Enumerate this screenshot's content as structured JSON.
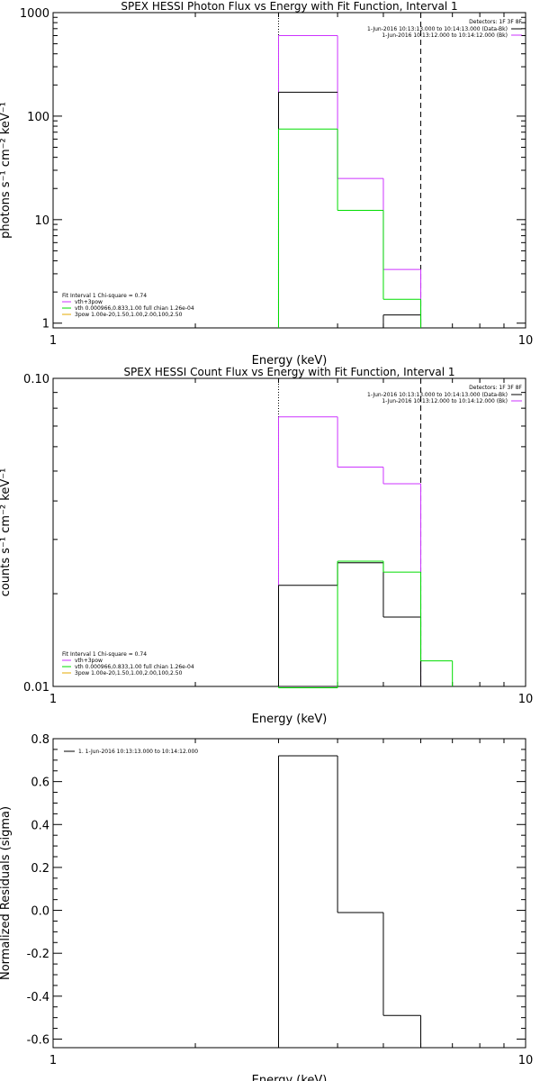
{
  "colors": {
    "background": "#ffffff",
    "axes": "#000000",
    "vth_plus_3pow": "#cc33ff",
    "vth": "#00dd00",
    "three_pow": "#e6a800",
    "data": "#000000",
    "fit": "#cc33ff"
  },
  "chart_data": [
    {
      "type": "line",
      "title": "SPEX HESSI Photon Flux vs Energy with Fit Function, Interval 1",
      "xlabel": "Energy (keV)",
      "ylabel": "photons s⁻¹ cm⁻² keV⁻¹",
      "x_scale": "log",
      "y_scale": "log",
      "xlim": [
        1,
        10
      ],
      "ylim": [
        0.9,
        1000
      ],
      "x_ticks": [
        1,
        10
      ],
      "x_tick_labels": [
        "1",
        "10"
      ],
      "y_ticks": [
        1,
        10,
        100,
        1000
      ],
      "y_tick_labels": [
        "1",
        "10",
        "100",
        "1000"
      ],
      "vlines": [
        {
          "x": 3.0,
          "style": "dotted"
        },
        {
          "x": 6.0,
          "style": "dashed"
        }
      ],
      "legend_top_right": {
        "header": "Detectors: 1F 3F 8F",
        "entries": [
          {
            "text": "1-Jun-2016 10:13:13.000 to 10:14:13.000 (Data-Bk)",
            "color": "#000000"
          },
          {
            "text": "1-Jun-2016 10:13:12.000 to 10:14:12.000 (Bk)",
            "color": "#cc33ff"
          }
        ]
      },
      "legend_bottom_left": {
        "header": "Fit Interval 1   Chi-square = 0.74",
        "entries": [
          {
            "text": "vth+3pow",
            "color": "#cc33ff"
          },
          {
            "text": "vth 0.000966,0.833,1.00  full chian 1.26e-04",
            "color": "#00dd00"
          },
          {
            "text": "3pow 1.00e-20,1.50,1.00,2.00,100,2.50",
            "color": "#e6a800"
          }
        ]
      },
      "series": [
        {
          "color": "#cc33ff",
          "edges": [
            3,
            4,
            5,
            6
          ],
          "values": [
            600,
            25,
            3.3
          ]
        },
        {
          "color": "#000000",
          "edges": [
            3,
            4,
            5,
            6
          ],
          "values": [
            170,
            0,
            1.2
          ]
        },
        {
          "color": "#00dd00",
          "edges": [
            3,
            4,
            5,
            6
          ],
          "values": [
            75,
            12.3,
            1.7
          ]
        }
      ]
    },
    {
      "type": "line",
      "title": "SPEX HESSI Count Flux vs Energy with Fit Function, Interval 1",
      "xlabel": "Energy (keV)",
      "ylabel": "counts s⁻¹ cm⁻² keV⁻¹",
      "x_scale": "log",
      "y_scale": "log",
      "xlim": [
        1,
        10
      ],
      "ylim": [
        0.01,
        0.1
      ],
      "x_ticks": [
        1,
        10
      ],
      "x_tick_labels": [
        "1",
        "10"
      ],
      "y_ticks": [
        0.01,
        0.1
      ],
      "y_tick_labels": [
        "0.01",
        "0.10"
      ],
      "vlines": [
        {
          "x": 3.0,
          "style": "dotted"
        },
        {
          "x": 6.0,
          "style": "dashed"
        }
      ],
      "legend_top_right": {
        "header": "Detectors: 1F 3F 8F",
        "entries": [
          {
            "text": "1-Jun-2016 10:13:13.000 to 10:14:13.000 (Data-Bk)",
            "color": "#000000"
          },
          {
            "text": "1-Jun-2016 10:13:12.000 to 10:14:12.000 (Bk)",
            "color": "#cc33ff"
          }
        ]
      },
      "legend_bottom_left": {
        "header": "Fit Interval 1   Chi-square = 0.74",
        "entries": [
          {
            "text": "vth+3pow",
            "color": "#cc33ff"
          },
          {
            "text": "vth 0.000966,0.833,1.00  full chian 1.26e-04",
            "color": "#00dd00"
          },
          {
            "text": "3pow 1.00e-20,1.50,1.00,2.00,100,2.50",
            "color": "#e6a800"
          }
        ]
      },
      "series": [
        {
          "color": "#cc33ff",
          "edges": [
            3,
            4,
            5,
            6
          ],
          "values": [
            0.075,
            0.0515,
            0.0455
          ]
        },
        {
          "color": "#000000",
          "edges": [
            3,
            4,
            5,
            6
          ],
          "values": [
            0.0213,
            0.0252,
            0.0168
          ]
        },
        {
          "color": "#00dd00",
          "edges": [
            3,
            4,
            5,
            6,
            7
          ],
          "values": [
            0.0099,
            0.0255,
            0.0235,
            0.0121
          ]
        }
      ]
    },
    {
      "type": "line",
      "title": "",
      "xlabel": "Energy (keV)",
      "ylabel": "Normalized Residuals (sigma)",
      "x_scale": "log",
      "y_scale": "linear",
      "xlim": [
        1,
        10
      ],
      "ylim": [
        -0.64,
        0.8
      ],
      "x_ticks": [
        1,
        10
      ],
      "x_tick_labels": [
        "1",
        "10"
      ],
      "y_ticks": [
        -0.6,
        -0.4,
        -0.2,
        0.0,
        0.2,
        0.4,
        0.6,
        0.8
      ],
      "y_tick_labels": [
        "-0.6",
        "-0.4",
        "-0.2",
        "0.0",
        "0.2",
        "0.4",
        "0.6",
        "0.8"
      ],
      "legend_top_left": {
        "entries": [
          {
            "text": "1. 1-Jun-2016 10:13:13.000 to 10:14:12.000",
            "color": "#000000"
          }
        ]
      },
      "series": [
        {
          "color": "#000000",
          "edges": [
            3,
            4,
            5,
            6
          ],
          "values": [
            0.72,
            -0.01,
            -0.49
          ]
        }
      ]
    }
  ]
}
